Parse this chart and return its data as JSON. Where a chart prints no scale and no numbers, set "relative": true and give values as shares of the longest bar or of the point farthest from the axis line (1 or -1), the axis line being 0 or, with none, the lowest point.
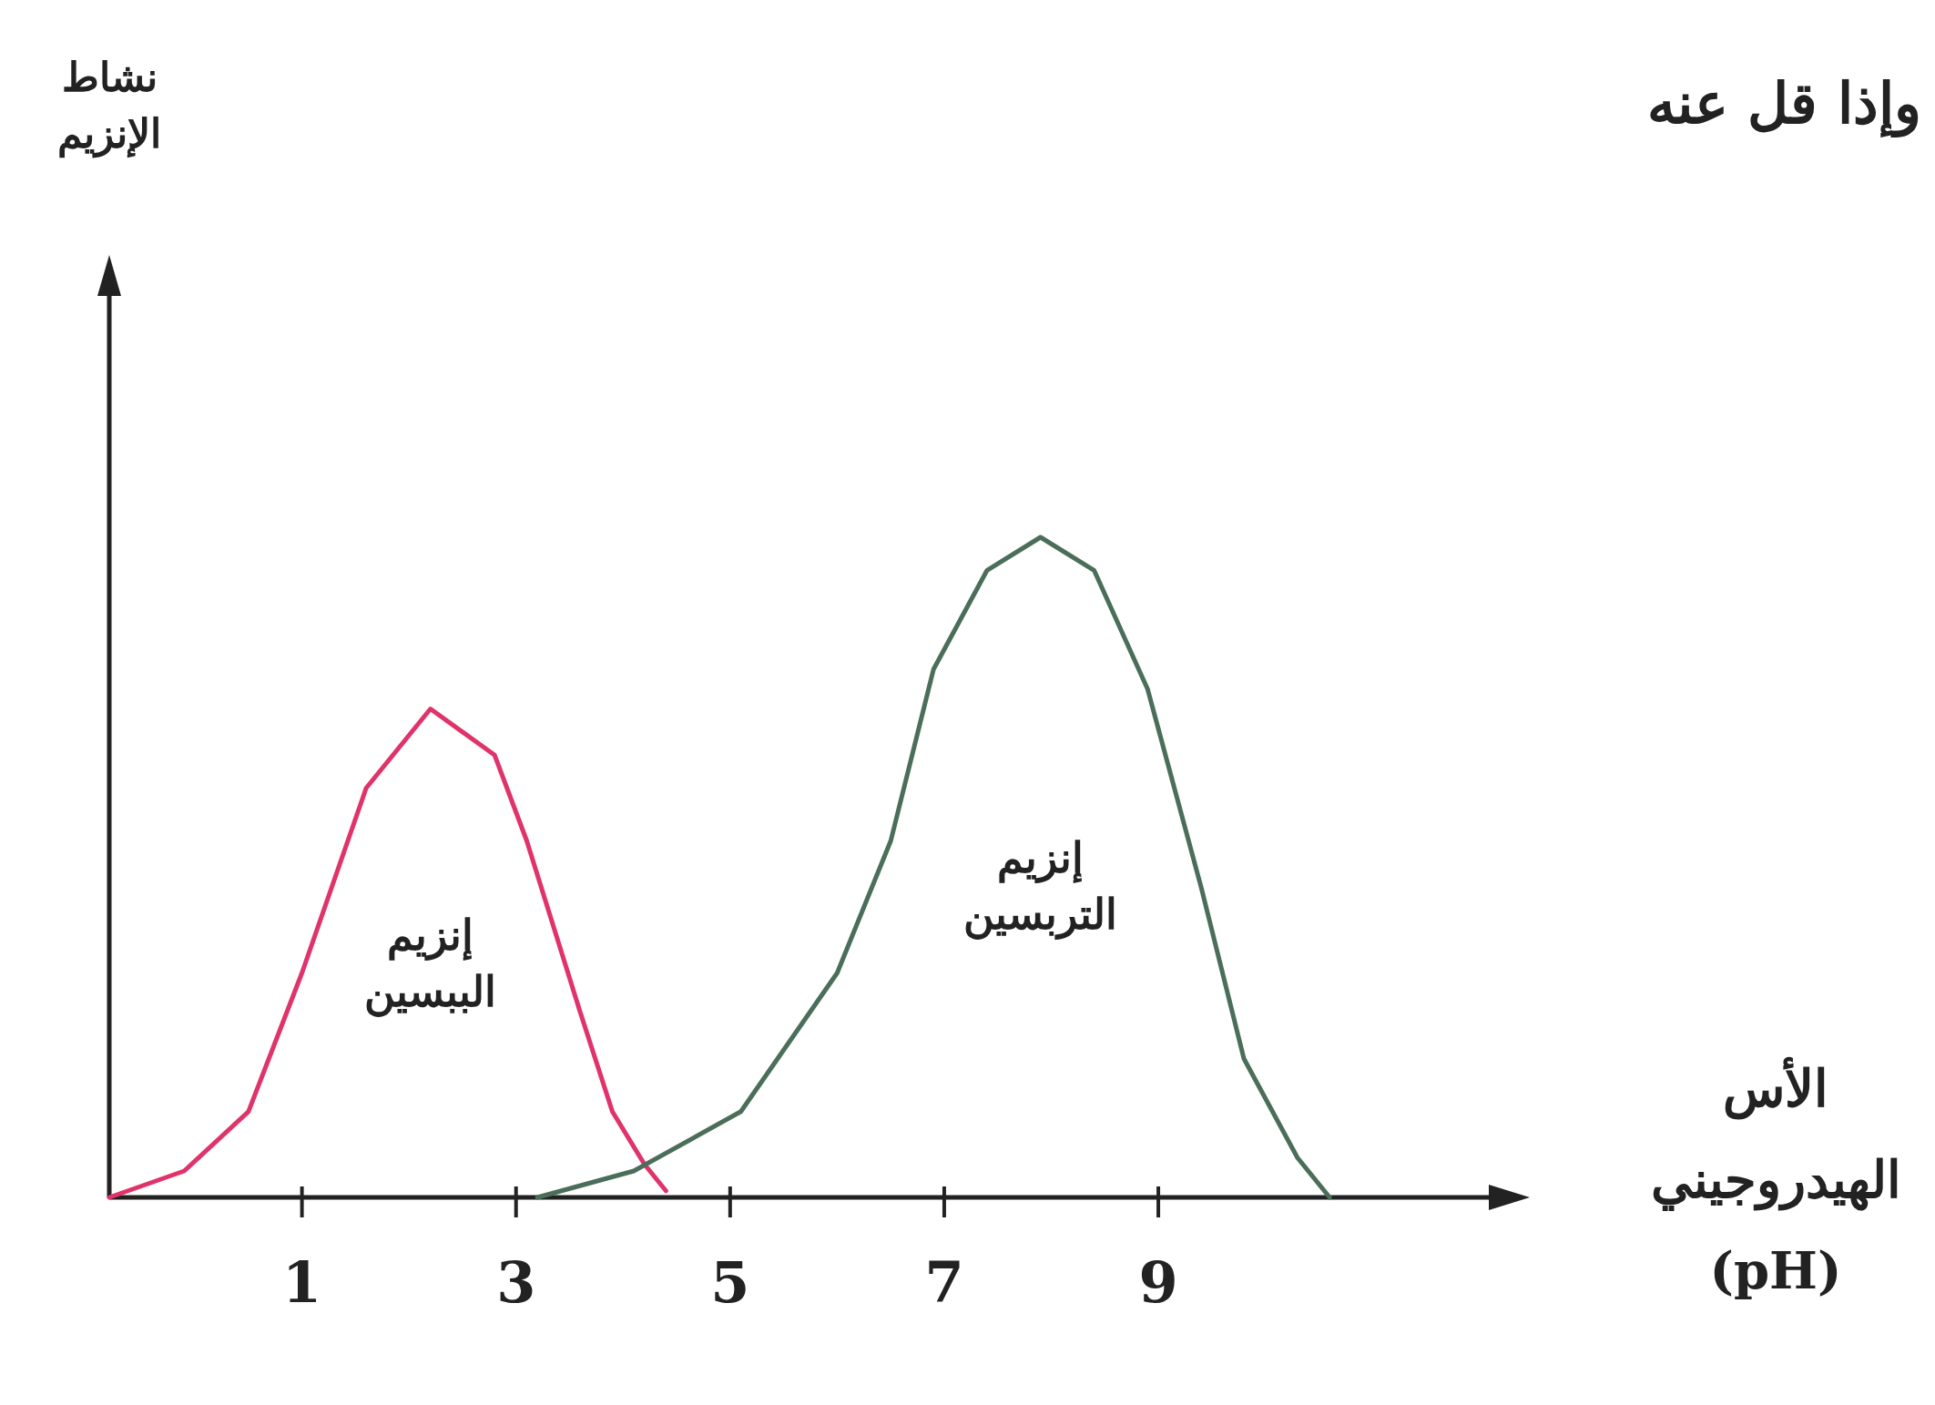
{
  "chart_data": {
    "type": "line",
    "relative": true,
    "xlabel": "الأس الهيدروجيني (pH)",
    "annotations": [
      "وإذا قل عنه",
      "نشاط الإنزيم"
    ],
    "xlim": [
      -0.8,
      12.3
    ],
    "xticks": [
      1,
      3,
      5,
      7,
      9
    ],
    "series": [
      {
        "name": "إنزيم الببسين",
        "color": "#e0336a",
        "x": [
          -0.8,
          -0.1,
          0.5,
          1.0,
          1.6,
          2.2,
          2.8,
          3.1,
          3.6,
          3.9,
          4.2,
          4.4
        ],
        "values": [
          0,
          0.04,
          0.13,
          0.34,
          0.62,
          0.74,
          0.67,
          0.54,
          0.28,
          0.13,
          0.05,
          0.01
        ]
      },
      {
        "name": "إنزيم التربسين",
        "color": "#4a6e5a",
        "x": [
          3.2,
          4.1,
          5.1,
          6.0,
          6.5,
          6.9,
          7.4,
          7.9,
          8.4,
          8.9,
          9.4,
          9.8,
          10.3,
          10.6
        ],
        "values": [
          0,
          0.04,
          0.13,
          0.34,
          0.54,
          0.8,
          0.95,
          1.0,
          0.95,
          0.77,
          0.47,
          0.21,
          0.06,
          0
        ]
      }
    ]
  }
}
